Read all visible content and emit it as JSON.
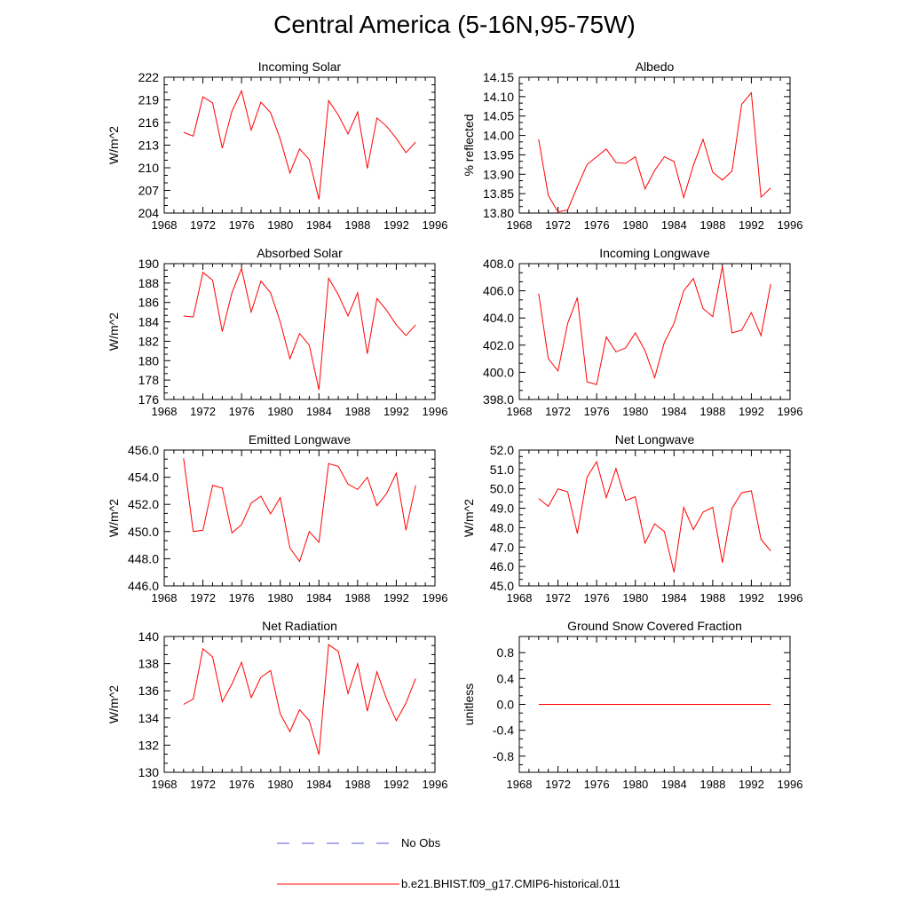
{
  "title": "Central America (5-16N,95-75W)",
  "legend": {
    "obs_label": "No Obs",
    "obs_color": "#5a5ad8",
    "model_label": "b.e21.BHIST.f09_g17.CMIP6-historical.011",
    "model_color": "#ff0000"
  },
  "x_ticks": [
    "1968",
    "1972",
    "1976",
    "1980",
    "1984",
    "1988",
    "1992",
    "1996"
  ],
  "chart_data": [
    {
      "type": "line",
      "title": "Incoming Solar",
      "ylabel": "W/m^2",
      "xlim": [
        1968,
        1996
      ],
      "ylim": [
        204,
        222
      ],
      "yticks": [
        "222",
        "219",
        "216",
        "213",
        "210",
        "207",
        "204"
      ],
      "x": [
        1970,
        1971,
        1972,
        1973,
        1974,
        1975,
        1976,
        1977,
        1978,
        1979,
        1980,
        1981,
        1982,
        1983,
        1984,
        1985,
        1986,
        1987,
        1988,
        1989,
        1990,
        1991,
        1992,
        1993,
        1994
      ],
      "series": [
        {
          "values": [
            214.7,
            214.2,
            219.4,
            218.6,
            212.6,
            217.5,
            220.2,
            215.0,
            218.7,
            217.3,
            213.8,
            209.3,
            212.5,
            211.1,
            205.8,
            218.9,
            217.0,
            214.5,
            217.4,
            209.9,
            216.6,
            215.5,
            213.9,
            212.0,
            213.4
          ]
        }
      ]
    },
    {
      "type": "line",
      "title": "Albedo",
      "ylabel": "% reflected",
      "xlim": [
        1968,
        1996
      ],
      "ylim": [
        13.8,
        14.15
      ],
      "yticks": [
        "14.15",
        "14.10",
        "14.05",
        "14.00",
        "13.95",
        "13.90",
        "13.85",
        "13.80"
      ],
      "x": [
        1970,
        1971,
        1972,
        1973,
        1974,
        1975,
        1976,
        1977,
        1978,
        1979,
        1980,
        1981,
        1982,
        1983,
        1984,
        1985,
        1986,
        1987,
        1988,
        1989,
        1990,
        1991,
        1992,
        1993,
        1994
      ],
      "series": [
        {
          "values": [
            13.99,
            13.845,
            13.803,
            13.808,
            13.868,
            13.925,
            13.945,
            13.965,
            13.93,
            13.928,
            13.945,
            13.862,
            13.91,
            13.945,
            13.933,
            13.84,
            13.923,
            13.99,
            13.905,
            13.885,
            13.908,
            14.08,
            14.11,
            13.841,
            13.865
          ]
        }
      ]
    },
    {
      "type": "line",
      "title": "Absorbed Solar",
      "ylabel": "W/m^2",
      "xlim": [
        1968,
        1996
      ],
      "ylim": [
        176,
        190
      ],
      "yticks": [
        "190",
        "188",
        "186",
        "184",
        "182",
        "180",
        "178",
        "176"
      ],
      "x": [
        1970,
        1971,
        1972,
        1973,
        1974,
        1975,
        1976,
        1977,
        1978,
        1979,
        1980,
        1981,
        1982,
        1983,
        1984,
        1985,
        1986,
        1987,
        1988,
        1989,
        1990,
        1991,
        1992,
        1993,
        1994
      ],
      "series": [
        {
          "values": [
            184.6,
            184.5,
            189.1,
            188.3,
            183.0,
            187.0,
            189.5,
            185.0,
            188.2,
            187.0,
            184.0,
            180.2,
            182.8,
            181.6,
            177.0,
            188.5,
            186.8,
            184.6,
            187.0,
            180.7,
            186.4,
            185.2,
            183.7,
            182.6,
            183.7
          ]
        }
      ]
    },
    {
      "type": "line",
      "title": "Incoming Longwave",
      "ylabel": "",
      "xlim": [
        1968,
        1996
      ],
      "ylim": [
        398.0,
        408.0
      ],
      "yticks": [
        "408.0",
        "406.0",
        "404.0",
        "402.0",
        "400.0",
        "398.0"
      ],
      "x": [
        1970,
        1971,
        1972,
        1973,
        1974,
        1975,
        1976,
        1977,
        1978,
        1979,
        1980,
        1981,
        1982,
        1983,
        1984,
        1985,
        1986,
        1987,
        1988,
        1989,
        1990,
        1991,
        1992,
        1993,
        1994
      ],
      "series": [
        {
          "values": [
            405.8,
            401.0,
            400.1,
            403.6,
            405.5,
            399.3,
            399.1,
            402.6,
            401.5,
            401.8,
            402.9,
            401.6,
            399.6,
            402.2,
            403.6,
            406.0,
            406.9,
            404.7,
            404.1,
            407.8,
            402.9,
            403.1,
            404.4,
            402.7,
            406.5
          ]
        }
      ]
    },
    {
      "type": "line",
      "title": "Emitted Longwave",
      "ylabel": "W/m^2",
      "xlim": [
        1968,
        1996
      ],
      "ylim": [
        446.0,
        456.0
      ],
      "yticks": [
        "456.0",
        "454.0",
        "452.0",
        "450.0",
        "448.0",
        "446.0"
      ],
      "x": [
        1970,
        1971,
        1972,
        1973,
        1974,
        1975,
        1976,
        1977,
        1978,
        1979,
        1980,
        1981,
        1982,
        1983,
        1984,
        1985,
        1986,
        1987,
        1988,
        1989,
        1990,
        1991,
        1992,
        1993,
        1994
      ],
      "series": [
        {
          "values": [
            455.4,
            450.0,
            450.1,
            453.4,
            453.2,
            449.9,
            450.5,
            452.1,
            452.6,
            451.3,
            452.5,
            448.8,
            447.8,
            450.0,
            449.2,
            455.0,
            454.8,
            453.5,
            453.1,
            454.0,
            451.9,
            452.8,
            454.3,
            450.1,
            453.4
          ]
        }
      ]
    },
    {
      "type": "line",
      "title": "Net Longwave",
      "ylabel": "W/m^2",
      "xlim": [
        1968,
        1996
      ],
      "ylim": [
        45.0,
        52.0
      ],
      "yticks": [
        "52.0",
        "51.0",
        "50.0",
        "49.0",
        "48.0",
        "47.0",
        "46.0",
        "45.0"
      ],
      "x": [
        1970,
        1971,
        1972,
        1973,
        1974,
        1975,
        1976,
        1977,
        1978,
        1979,
        1980,
        1981,
        1982,
        1983,
        1984,
        1985,
        1986,
        1987,
        1988,
        1989,
        1990,
        1991,
        1992,
        1993,
        1994
      ],
      "series": [
        {
          "values": [
            49.5,
            49.1,
            50.0,
            49.85,
            47.7,
            50.6,
            51.4,
            49.55,
            51.05,
            49.4,
            49.6,
            47.2,
            48.2,
            47.8,
            45.7,
            49.05,
            47.9,
            48.8,
            49.05,
            46.2,
            49.0,
            49.8,
            49.9,
            47.4,
            46.8
          ]
        }
      ]
    },
    {
      "type": "line",
      "title": "Net Radiation",
      "ylabel": "W/m^2",
      "xlim": [
        1968,
        1996
      ],
      "ylim": [
        130,
        140
      ],
      "yticks": [
        "140",
        "138",
        "136",
        "134",
        "132",
        "130"
      ],
      "x": [
        1970,
        1971,
        1972,
        1973,
        1974,
        1975,
        1976,
        1977,
        1978,
        1979,
        1980,
        1981,
        1982,
        1983,
        1984,
        1985,
        1986,
        1987,
        1988,
        1989,
        1990,
        1991,
        1992,
        1993,
        1994
      ],
      "series": [
        {
          "values": [
            135.0,
            135.4,
            139.1,
            138.5,
            135.2,
            136.5,
            138.1,
            135.5,
            137.0,
            137.5,
            134.3,
            133.0,
            134.6,
            133.8,
            131.3,
            139.4,
            138.9,
            135.8,
            138.0,
            134.5,
            137.4,
            135.4,
            133.8,
            135.1,
            136.9
          ]
        }
      ]
    },
    {
      "type": "line",
      "title": "Ground Snow Covered Fraction",
      "ylabel": "unitless",
      "xlim": [
        1968,
        1996
      ],
      "ylim": [
        -1.05,
        1.05
      ],
      "yticks": [
        "0.8",
        "0.4",
        "0.0",
        "-0.4",
        "-0.8"
      ],
      "ytick_values": [
        0.8,
        0.4,
        0.0,
        -0.4,
        -0.8
      ],
      "x": [
        1970,
        1971,
        1972,
        1973,
        1974,
        1975,
        1976,
        1977,
        1978,
        1979,
        1980,
        1981,
        1982,
        1983,
        1984,
        1985,
        1986,
        1987,
        1988,
        1989,
        1990,
        1991,
        1992,
        1993,
        1994
      ],
      "series": [
        {
          "values": [
            0,
            0,
            0,
            0,
            0,
            0,
            0,
            0,
            0,
            0,
            0,
            0,
            0,
            0,
            0,
            0,
            0,
            0,
            0,
            0,
            0,
            0,
            0,
            0,
            0
          ]
        }
      ]
    }
  ]
}
